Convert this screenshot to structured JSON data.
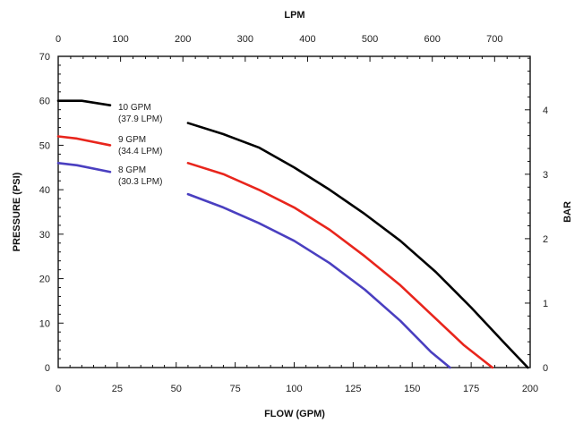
{
  "chart_data": {
    "type": "line",
    "xlabel": "FLOW (GPM)",
    "ylabel": "PRESSURE (PSI)",
    "x2label": "LPM",
    "y2label": "BAR",
    "xlim": [
      0,
      200
    ],
    "ylim": [
      0,
      70
    ],
    "x2lim": [
      0,
      757
    ],
    "y2lim": [
      0,
      4.83
    ],
    "grid": false,
    "xticks": [
      0,
      25,
      50,
      75,
      100,
      125,
      150,
      175,
      200
    ],
    "xtick_labels": [
      "0",
      "25",
      "50",
      "75",
      "100",
      "125",
      "150",
      "175",
      "200"
    ],
    "yticks": [
      0,
      10,
      20,
      30,
      40,
      50,
      60,
      70
    ],
    "ytick_labels": [
      "0",
      "10",
      "20",
      "30",
      "40",
      "50",
      "60",
      "70"
    ],
    "x2ticks": [
      0,
      100,
      200,
      300,
      400,
      500,
      600,
      700
    ],
    "x2tick_labels": [
      "0",
      "100",
      "200",
      "300",
      "400",
      "500",
      "600",
      "700"
    ],
    "y2ticks": [
      0,
      1,
      2,
      3,
      4
    ],
    "y2tick_labels": [
      "0",
      "1",
      "2",
      "3",
      "4"
    ],
    "series": [
      {
        "name": "10 GPM (37.9 LPM)",
        "label_lines": [
          "10 GPM",
          "(37.9 LPM)"
        ],
        "color": "#000000",
        "x": [
          0,
          10,
          22,
          55,
          70,
          85,
          100,
          115,
          130,
          145,
          160,
          175,
          190,
          199
        ],
        "y": [
          60,
          60,
          59,
          55,
          52.5,
          49.5,
          45,
          40,
          34.5,
          28.5,
          21.5,
          13.5,
          5,
          0
        ]
      },
      {
        "name": "9 GPM (34.4 LPM)",
        "label_lines": [
          "9 GPM",
          "(34.4 LPM)"
        ],
        "color": "#e8251c",
        "x": [
          0,
          8,
          22,
          55,
          70,
          85,
          100,
          115,
          130,
          145,
          160,
          172,
          184
        ],
        "y": [
          52,
          51.5,
          50,
          46,
          43.5,
          40,
          36,
          31,
          25,
          18.5,
          11,
          5,
          0
        ]
      },
      {
        "name": "8 GPM (30.3 LPM)",
        "label_lines": [
          "8 GPM",
          "(30.3 LPM)"
        ],
        "color": "#4a3fc0",
        "x": [
          0,
          8,
          22,
          55,
          70,
          85,
          100,
          115,
          130,
          145,
          158,
          166
        ],
        "y": [
          46,
          45.5,
          44,
          39,
          36,
          32.5,
          28.5,
          23.5,
          17.5,
          10.5,
          3.5,
          0
        ]
      }
    ]
  }
}
